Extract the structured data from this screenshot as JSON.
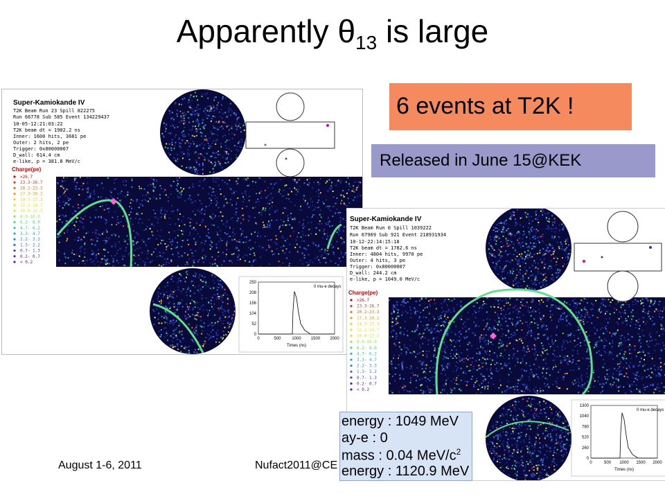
{
  "slide": {
    "title_prefix": "Apparently ",
    "title_theta": "θ",
    "title_sub": "13",
    "title_suffix": " is large",
    "events_box": "6 events at T2K !",
    "released_box": "Released in June 15@KEK",
    "footer_left": "August 1-6, 2011",
    "footer_center": "Nufact2011@CE"
  },
  "event1": {
    "title": "Super-Kamiokande IV",
    "lines": [
      "T2K Beam Run 23 Spill 822275",
      "Run 66778 Sub 585 Event 134229437",
      "10-05-12:21:03:22",
      "T2K beam dt =  1902.2 ns",
      "Inner: 1600 hits, 3681 pe",
      "Outer: 2 hits, 2 pe",
      "Trigger: 0x80000007",
      "D_wall: 614.4 cm",
      "e-like, p = 381.8 MeV/c"
    ],
    "charge_title": "Charge(pe)",
    "charge_labels": [
      ">26.7",
      "23.3-26.7",
      "20.2-23.3",
      "17.3-20.2",
      "14.7-17.3",
      "12.2-14.7",
      "10.0-12.2",
      "8.0-10.0",
      "6.2- 8.0",
      "4.7- 6.2",
      "3.3- 4.7",
      "2.2- 3.3",
      "1.3- 2.2",
      "0.7- 1.3",
      "0.2- 0.7",
      "< 0.2"
    ],
    "hist_legend": "0 mu-e decays",
    "hist_yticks": [
      "250",
      "208",
      "156",
      "104",
      "52",
      "0"
    ],
    "hist_xticks": [
      "0",
      "500",
      "1000",
      "1500",
      "2000"
    ],
    "hist_xlabel": "Times (ns)"
  },
  "event2": {
    "title": "Super-Kamiokande IV",
    "lines": [
      "T2K Beam Run 0 Spill 1039222",
      "Run 67969 Sub 921 Event 218931934",
      "10-12-22:14:15:18",
      "T2K beam dt =  1782.6 ns",
      "Inner: 4804 hits, 9970 pe",
      "Outer: 4 hits, 3 pe",
      "Trigger: 0x80000007",
      "D_wall: 244.2 cm",
      "e-like, p = 1049.0 MeV/c"
    ],
    "charge_title": "Charge(pe)",
    "charge_labels": [
      ">26.7",
      "23.3-26.7",
      "20.2-23.3",
      "17.3-20.2",
      "14.7-17.3",
      "12.2-14.7",
      "10.0-12.2",
      "8.0-10.0",
      "6.2- 8.0",
      "4.7- 6.2",
      "3.3- 4.7",
      "2.2- 3.3",
      "1.3- 2.2",
      "0.7- 1.3",
      "0.2- 0.7",
      "< 0.2"
    ],
    "hist_legend": "0 mu-e decays",
    "hist_yticks": [
      "1300",
      "1040",
      "780",
      "520",
      "260",
      "0"
    ],
    "hist_xticks": [
      "0",
      "500",
      "1000",
      "1500",
      "2000"
    ],
    "hist_xlabel": "Times (ns)"
  },
  "info": {
    "row1": "energy : 1049 MeV",
    "row2": "ay-e   : 0",
    "row3_prefix": "mass   : 0.04 MeV/c",
    "row3_sup": "2",
    "row4": "energy : 1120.9 MeV"
  },
  "colors": {
    "detector_bg": "#0a0a3a",
    "ring": "#5fe08a",
    "events_box": "#f58a5e",
    "released_box": "#9999cc",
    "info_box": "#d7e4f6",
    "charge_scale": [
      "#cc0000",
      "#e0301e",
      "#ff6600",
      "#ff9900",
      "#ffcc00",
      "#e8e800",
      "#c8f020",
      "#88ee44",
      "#44dd66",
      "#22cc99",
      "#22aacc",
      "#2288ee",
      "#3366ff",
      "#3344cc",
      "#5522bb",
      "#7711aa"
    ]
  }
}
